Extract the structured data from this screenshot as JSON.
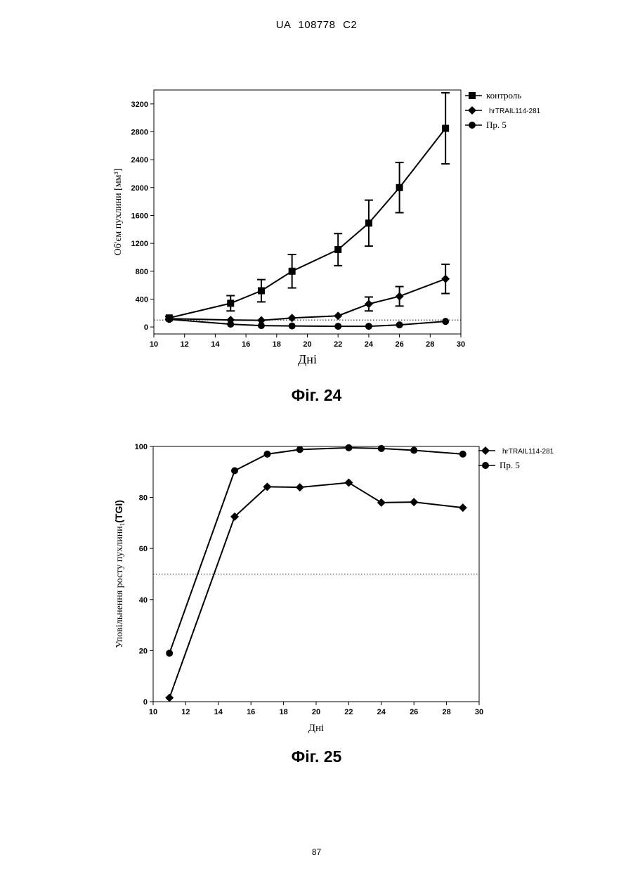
{
  "header": "UA   108778   C2",
  "page_number": "87",
  "figures": [
    {
      "caption": "Фіг. 24"
    },
    {
      "caption": "Фіг. 25"
    }
  ],
  "chart_data": [
    {
      "type": "line",
      "title": "",
      "xlabel": "Дні",
      "ylabel": "Об'єм пухлини  [мм³]",
      "xlim": [
        10,
        30
      ],
      "ylim": [
        -100,
        3400
      ],
      "x_ticks": [
        10,
        12,
        14,
        16,
        18,
        20,
        22,
        24,
        26,
        28,
        30
      ],
      "y_ticks": [
        0,
        400,
        800,
        1200,
        1600,
        2000,
        2400,
        2800,
        3200
      ],
      "reference_line": 100,
      "legend_position": "top-right, outside",
      "grid": false,
      "series": [
        {
          "name": "контроль",
          "marker": "square",
          "x": [
            11,
            15,
            17,
            19,
            22,
            24,
            26,
            29
          ],
          "y": [
            130,
            340,
            520,
            800,
            1110,
            1490,
            2000,
            2850
          ],
          "err": [
            20,
            110,
            160,
            240,
            230,
            330,
            360,
            510
          ]
        },
        {
          "name": "hrTRAIL114-281",
          "marker": "diamond",
          "x": [
            11,
            15,
            17,
            19,
            22,
            24,
            26,
            29
          ],
          "y": [
            120,
            100,
            95,
            130,
            160,
            330,
            440,
            690
          ],
          "err": [
            0,
            0,
            0,
            0,
            0,
            100,
            140,
            210
          ]
        },
        {
          "name": "Пр. 5",
          "marker": "circle",
          "x": [
            11,
            15,
            17,
            19,
            22,
            24,
            26,
            29
          ],
          "y": [
            110,
            40,
            20,
            15,
            10,
            10,
            30,
            80
          ],
          "err": [
            0,
            0,
            0,
            0,
            0,
            0,
            0,
            0
          ]
        }
      ]
    },
    {
      "type": "line",
      "title": "",
      "xlabel": "Дні",
      "ylabel": "Уповільнення росту пухлини",
      "ylabel_sub": "1",
      "ylabel_suffix": "(TGI)",
      "xlim": [
        10,
        30
      ],
      "ylim": [
        0,
        100
      ],
      "x_ticks": [
        10,
        12,
        14,
        16,
        18,
        20,
        22,
        24,
        26,
        28,
        30
      ],
      "y_ticks": [
        0,
        20,
        40,
        60,
        80,
        100
      ],
      "reference_line": 50,
      "legend_position": "top-right, outside",
      "grid": false,
      "series": [
        {
          "name": "hrTRAIL114-281",
          "marker": "diamond",
          "x": [
            11,
            15,
            17,
            19,
            22,
            24,
            26,
            29
          ],
          "y": [
            1.5,
            72.5,
            84.2,
            84,
            85.8,
            78,
            78.2,
            76
          ]
        },
        {
          "name": "Пр. 5",
          "marker": "circle",
          "x": [
            11,
            15,
            17,
            19,
            22,
            24,
            26,
            29
          ],
          "y": [
            19,
            90.5,
            97,
            98.8,
            99.5,
            99.2,
            98.5,
            97
          ]
        }
      ]
    }
  ]
}
